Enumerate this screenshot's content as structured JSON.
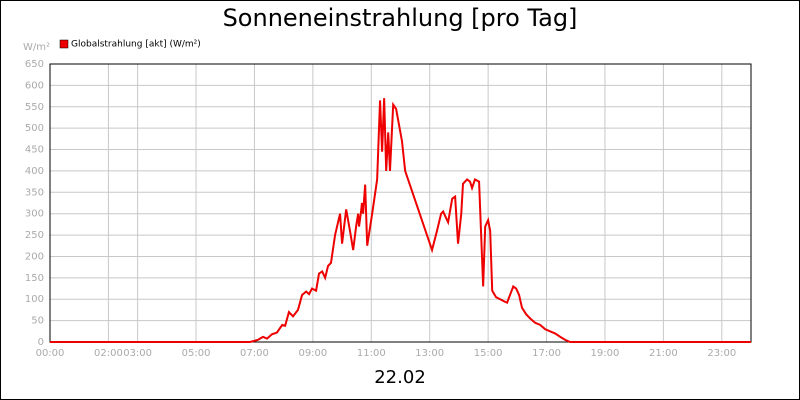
{
  "chart_data": {
    "type": "line",
    "title": "Sonneneinstrahlung [pro Tag]",
    "y_label": "W/m²",
    "x_label": "22.02",
    "legend": "top-left",
    "grid": true,
    "xlim": [
      0,
      24
    ],
    "xticks": [
      {
        "value": 0,
        "label": "00:00"
      },
      {
        "value": 2,
        "label": "02:00"
      },
      {
        "value": 3,
        "label": "03:00"
      },
      {
        "value": 5,
        "label": "05:00"
      },
      {
        "value": 7,
        "label": "07:00"
      },
      {
        "value": 9,
        "label": "09:00"
      },
      {
        "value": 11,
        "label": "11:00"
      },
      {
        "value": 13,
        "label": "13:00"
      },
      {
        "value": 15,
        "label": "15:00"
      },
      {
        "value": 17,
        "label": "17:00"
      },
      {
        "value": 19,
        "label": "19:00"
      },
      {
        "value": 21,
        "label": "21:00"
      },
      {
        "value": 23,
        "label": "23:00"
      }
    ],
    "ylim": [
      0,
      650
    ],
    "yticks": [
      0,
      50,
      100,
      150,
      200,
      250,
      300,
      350,
      400,
      450,
      500,
      550,
      600,
      650
    ],
    "x": [
      0,
      6.85,
      7.12,
      7.29,
      7.43,
      7.6,
      7.77,
      7.95,
      8.05,
      8.18,
      8.32,
      8.49,
      8.63,
      8.77,
      8.87,
      8.97,
      9.11,
      9.21,
      9.32,
      9.42,
      9.52,
      9.62,
      9.76,
      9.93,
      10.0,
      10.14,
      10.27,
      10.38,
      10.48,
      10.55,
      10.58,
      10.65,
      10.68,
      10.72,
      10.75,
      10.79,
      10.86,
      11.03,
      11.2,
      11.3,
      11.37,
      11.44,
      11.51,
      11.58,
      11.64,
      11.75,
      11.85,
      12.05,
      12.16,
      13.08,
      13.25,
      13.39,
      13.46,
      13.56,
      13.63,
      13.77,
      13.87,
      13.97,
      14.08,
      14.14,
      14.28,
      14.38,
      14.45,
      14.55,
      14.69,
      14.83,
      14.9,
      15.0,
      15.07,
      15.14,
      15.27,
      15.41,
      15.55,
      15.65,
      15.75,
      15.86,
      15.96,
      16.06,
      16.16,
      16.3,
      16.44,
      16.61,
      16.78,
      16.95,
      17.12,
      17.29,
      17.47,
      17.64,
      17.81,
      24
    ],
    "series": [
      {
        "name": "Globalstrahlung [akt] (W/m²)",
        "color": "#ee0000",
        "values": [
          0,
          0,
          5,
          12,
          8,
          18,
          22,
          40,
          38,
          70,
          60,
          75,
          110,
          118,
          112,
          125,
          120,
          160,
          165,
          150,
          178,
          185,
          250,
          300,
          230,
          310,
          260,
          215,
          270,
          300,
          270,
          305,
          325,
          300,
          330,
          368,
          225,
          300,
          380,
          565,
          445,
          570,
          400,
          490,
          400,
          555,
          545,
          470,
          400,
          215,
          260,
          300,
          305,
          290,
          280,
          335,
          340,
          230,
          300,
          370,
          380,
          375,
          360,
          380,
          375,
          130,
          270,
          285,
          260,
          120,
          105,
          100,
          95,
          92,
          110,
          130,
          125,
          110,
          80,
          65,
          55,
          45,
          40,
          30,
          25,
          20,
          12,
          5,
          0,
          0
        ]
      }
    ]
  }
}
